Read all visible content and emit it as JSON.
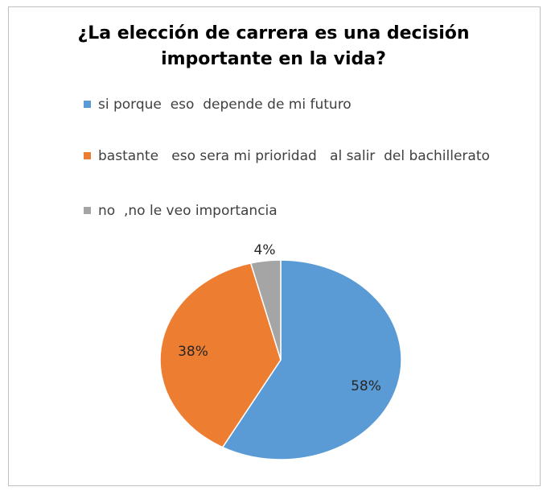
{
  "chart_data": {
    "type": "pie",
    "title": "¿La elección de carrera es  una decisión\nimportante  en la vida?",
    "legend_position": "top",
    "categories": [
      "si porque  eso  depende de mi futuro",
      "bastante   eso sera mi prioridad   al salir  del bachillerato",
      "no  ,no le veo importancia"
    ],
    "values": [
      58,
      38,
      4
    ],
    "data_labels": [
      "58%",
      "38%",
      "4%"
    ],
    "colors": [
      "#5b9bd5",
      "#ed7d31",
      "#a5a5a5"
    ]
  }
}
